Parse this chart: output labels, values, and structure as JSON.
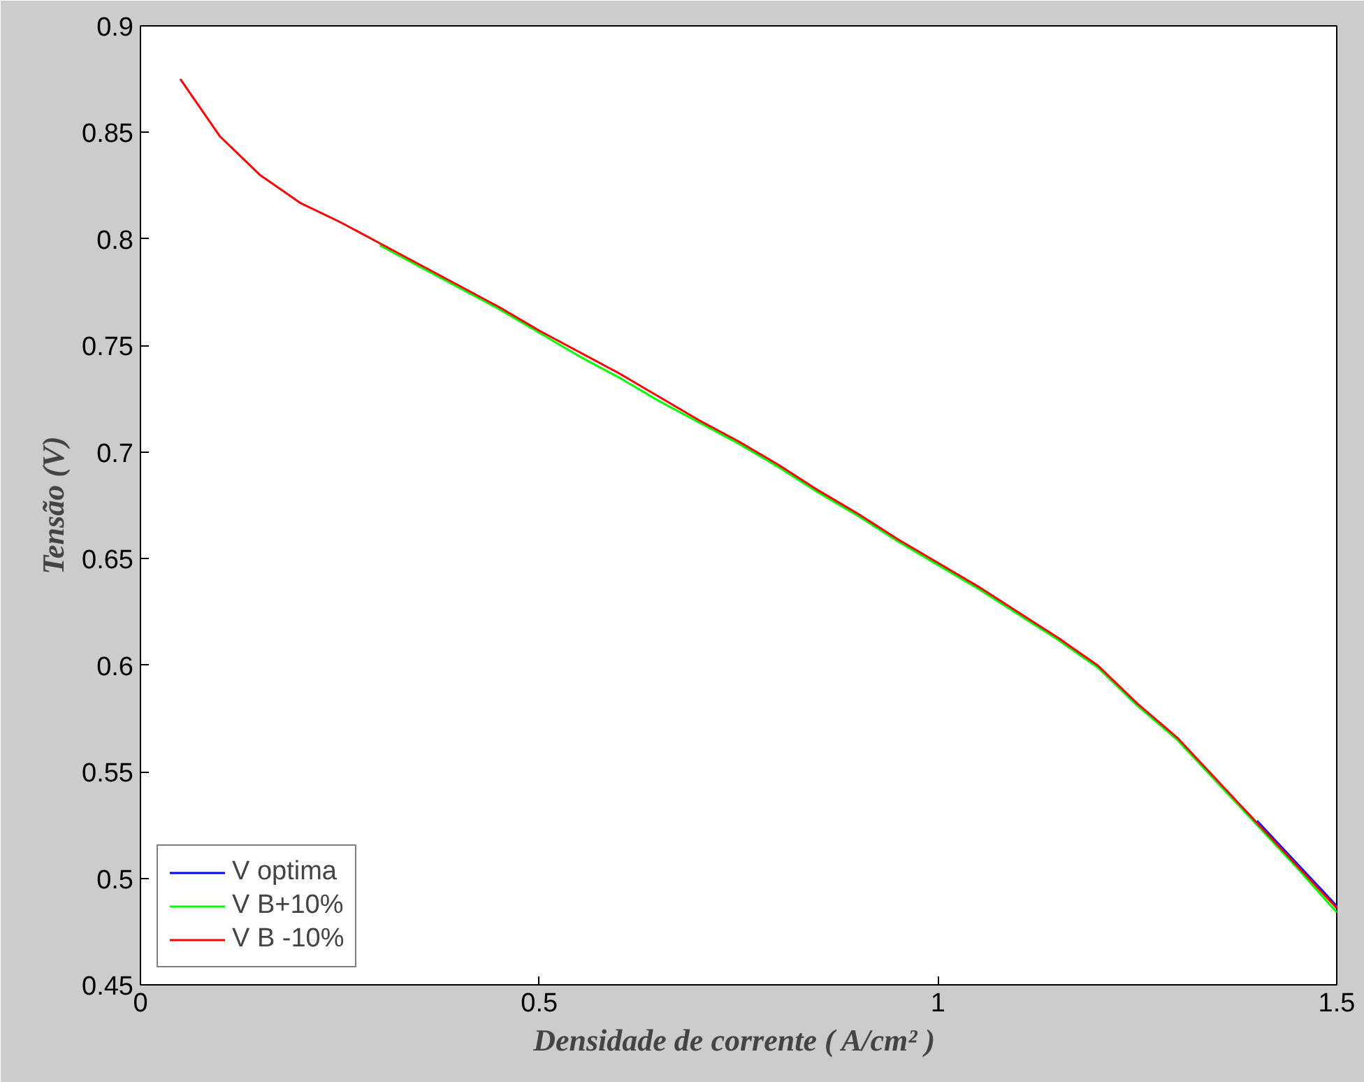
{
  "chart_data": {
    "type": "line",
    "xlabel": "Densidade de corrente  ( A/cm² )",
    "ylabel": "Tensão (V)",
    "x": [
      0.05,
      0.1,
      0.15,
      0.2,
      0.25,
      0.3,
      0.35,
      0.4,
      0.45,
      0.5,
      0.55,
      0.6,
      0.65,
      0.7,
      0.75,
      0.8,
      0.85,
      0.9,
      0.95,
      1.0,
      1.05,
      1.1,
      1.15,
      1.2,
      1.25,
      1.3,
      1.35,
      1.4,
      1.45,
      1.5
    ],
    "series": [
      {
        "name": "V optima",
        "color": "#0000ff",
        "values": [
          null,
          null,
          null,
          null,
          null,
          null,
          null,
          null,
          null,
          null,
          null,
          null,
          null,
          null,
          null,
          null,
          null,
          null,
          null,
          null,
          null,
          null,
          null,
          null,
          null,
          null,
          null,
          0.527,
          0.507,
          0.487
        ]
      },
      {
        "name": "V B+10%",
        "color": "#00ff00",
        "values": [
          null,
          null,
          null,
          null,
          null,
          0.797,
          0.787,
          0.777,
          0.767,
          0.756,
          0.745,
          0.735,
          0.724,
          0.714,
          0.704,
          0.693,
          0.681,
          0.67,
          0.658,
          0.647,
          0.636,
          0.624,
          0.612,
          0.599,
          0.581,
          0.565,
          0.545,
          0.525,
          0.505,
          0.484
        ]
      },
      {
        "name": "V B -10%",
        "color": "#ff0000",
        "values": [
          0.875,
          0.848,
          0.83,
          0.817,
          0.808,
          0.798,
          0.788,
          0.778,
          0.768,
          0.757,
          0.747,
          0.737,
          0.726,
          0.715,
          0.705,
          0.694,
          0.682,
          0.671,
          0.659,
          0.648,
          0.637,
          0.625,
          0.613,
          0.6,
          0.582,
          0.566,
          0.546,
          0.526,
          0.506,
          0.486
        ]
      }
    ],
    "xlim": [
      0,
      1.5
    ],
    "ylim": [
      0.45,
      0.9
    ],
    "xticks": [
      0,
      0.5,
      1,
      1.5
    ],
    "yticks": [
      0.45,
      0.5,
      0.55,
      0.6,
      0.65,
      0.7,
      0.75,
      0.8,
      0.85,
      0.9
    ],
    "grid": false,
    "legend": "bottom left",
    "line_style": "solid",
    "marker": "none"
  }
}
